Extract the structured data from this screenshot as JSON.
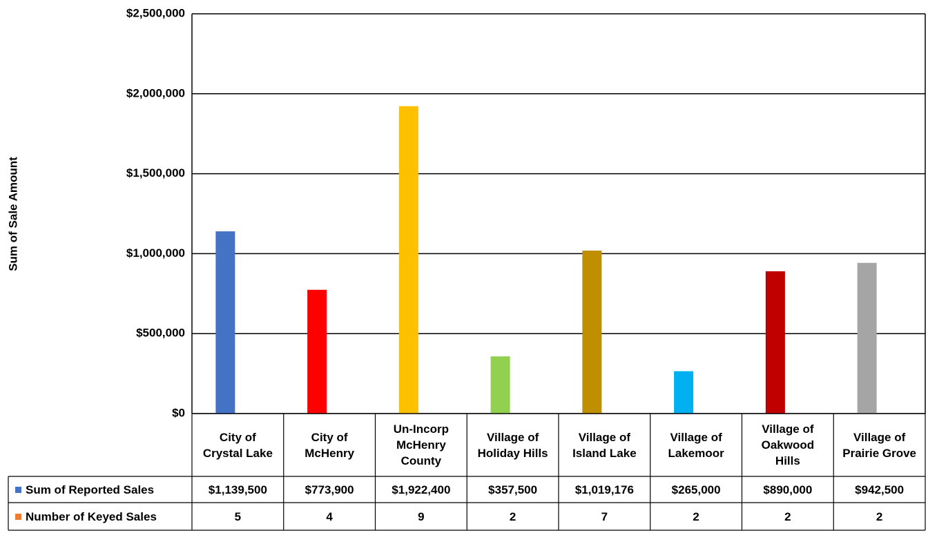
{
  "chart_data": {
    "type": "bar",
    "ylabel": "Sum of Sale Amount",
    "categories": [
      "City of Crystal Lake",
      "City of McHenry",
      "Un-Incorp McHenry County",
      "Village of Holiday Hills",
      "Village of Island Lake",
      "Village of Lakemoor",
      "Village of Oakwood Hills",
      "Village of Prairie Grove"
    ],
    "series": [
      {
        "name": "Sum of Reported Sales",
        "color": "#4472c4",
        "colors": [
          "#4472c4",
          "#ff0000",
          "#ffc000",
          "#92d050",
          "#bf8f00",
          "#00b0f0",
          "#c00000",
          "#a5a5a5"
        ],
        "values": [
          1139500,
          773900,
          1922400,
          357500,
          1019176,
          265000,
          890000,
          942500
        ],
        "value_labels": [
          "$1,139,500",
          "$773,900",
          "$1,922,400",
          "$357,500",
          "$1,019,176",
          "$265,000",
          "$890,000",
          "$942,500"
        ]
      },
      {
        "name": "Number of Keyed Sales",
        "color": "#ed7d31",
        "values": [
          5,
          4,
          9,
          2,
          7,
          2,
          2,
          2
        ]
      }
    ],
    "ylim": [
      0,
      2500000
    ],
    "yticks": [
      {
        "value": 0,
        "label": "$0"
      },
      {
        "value": 500000,
        "label": "$500,000"
      },
      {
        "value": 1000000,
        "label": "$1,000,000"
      },
      {
        "value": 1500000,
        "label": "$1,500,000"
      },
      {
        "value": 2000000,
        "label": "$2,000,000"
      },
      {
        "value": 2500000,
        "label": "$2,500,000"
      }
    ],
    "grid": true
  }
}
